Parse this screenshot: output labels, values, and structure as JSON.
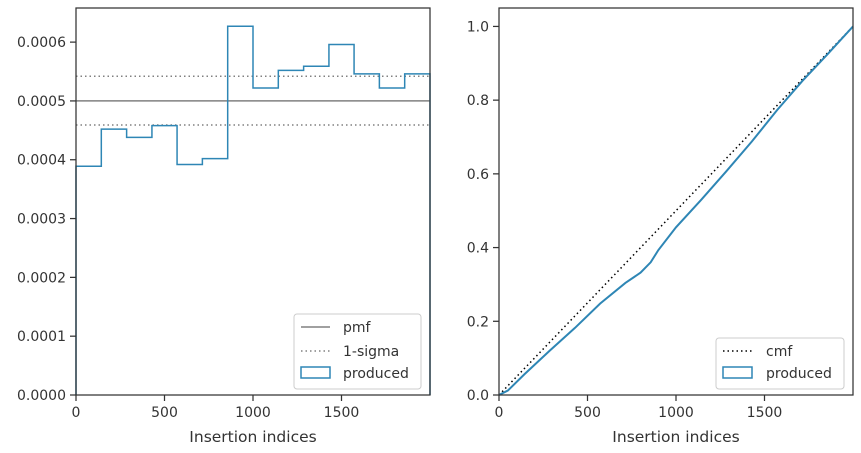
{
  "chart_data": [
    {
      "type": "step",
      "xlabel": "Insertion indices",
      "ylabel": "",
      "xlim": [
        0,
        2000
      ],
      "ylim": [
        0,
        0.000658
      ],
      "x_ticks": [
        0,
        500,
        1000,
        1500
      ],
      "x_tick_labels": [
        "0",
        "500",
        "1000",
        "1500"
      ],
      "y_ticks": [
        0,
        0.0001,
        0.0002,
        0.0003,
        0.0004,
        0.0005,
        0.0006
      ],
      "y_tick_labels": [
        "0.0000",
        "0.0001",
        "0.0002",
        "0.0003",
        "0.0004",
        "0.0005",
        "0.0006"
      ],
      "grid": false,
      "legend_position": "lower right",
      "reference_lines": [
        {
          "name": "pmf",
          "y": 0.0005,
          "style": "solid",
          "color": "#808080"
        },
        {
          "name": "1-sigma",
          "y": 0.000459,
          "style": "dotted",
          "color": "#808080"
        },
        {
          "name": "1-sigma",
          "y": 0.000542,
          "style": "dotted",
          "color": "#808080"
        }
      ],
      "series": [
        {
          "name": "produced",
          "color": "#2e86b5",
          "bin_edges": [
            0,
            143,
            286,
            429,
            571,
            714,
            857,
            1000,
            1143,
            1286,
            1429,
            1571,
            1714,
            1857,
            2000
          ],
          "values": [
            0.000389,
            0.000452,
            0.000438,
            0.000458,
            0.000392,
            0.000402,
            0.000627,
            0.000522,
            0.000552,
            0.000559,
            0.000596,
            0.000546,
            0.000522,
            0.000546
          ]
        }
      ],
      "legend": [
        "pmf",
        "1-sigma",
        "produced"
      ]
    },
    {
      "type": "line",
      "xlabel": "Insertion indices",
      "ylabel": "",
      "xlim": [
        0,
        2000
      ],
      "ylim": [
        0,
        1.05
      ],
      "x_ticks": [
        0,
        500,
        1000,
        1500
      ],
      "x_tick_labels": [
        "0",
        "500",
        "1000",
        "1500"
      ],
      "y_ticks": [
        0,
        0.2,
        0.4,
        0.6,
        0.8,
        1.0
      ],
      "y_tick_labels": [
        "0.0",
        "0.2",
        "0.4",
        "0.6",
        "0.8",
        "1.0"
      ],
      "grid": false,
      "legend_position": "lower right",
      "series": [
        {
          "name": "cmf",
          "style": "dotted",
          "color": "#000000",
          "x": [
            0,
            2000
          ],
          "y": [
            0,
            1.0
          ]
        },
        {
          "name": "produced",
          "style": "solid",
          "color": "#2e86b5",
          "x": [
            0,
            50,
            143,
            286,
            429,
            571,
            714,
            800,
            857,
            900,
            1000,
            1143,
            1286,
            1429,
            1571,
            1714,
            1857,
            2000
          ],
          "y": [
            0,
            0.012,
            0.056,
            0.12,
            0.182,
            0.248,
            0.304,
            0.332,
            0.36,
            0.393,
            0.455,
            0.53,
            0.608,
            0.688,
            0.773,
            0.852,
            0.925,
            1.0
          ]
        }
      ],
      "legend": [
        "cmf",
        "produced"
      ]
    }
  ]
}
